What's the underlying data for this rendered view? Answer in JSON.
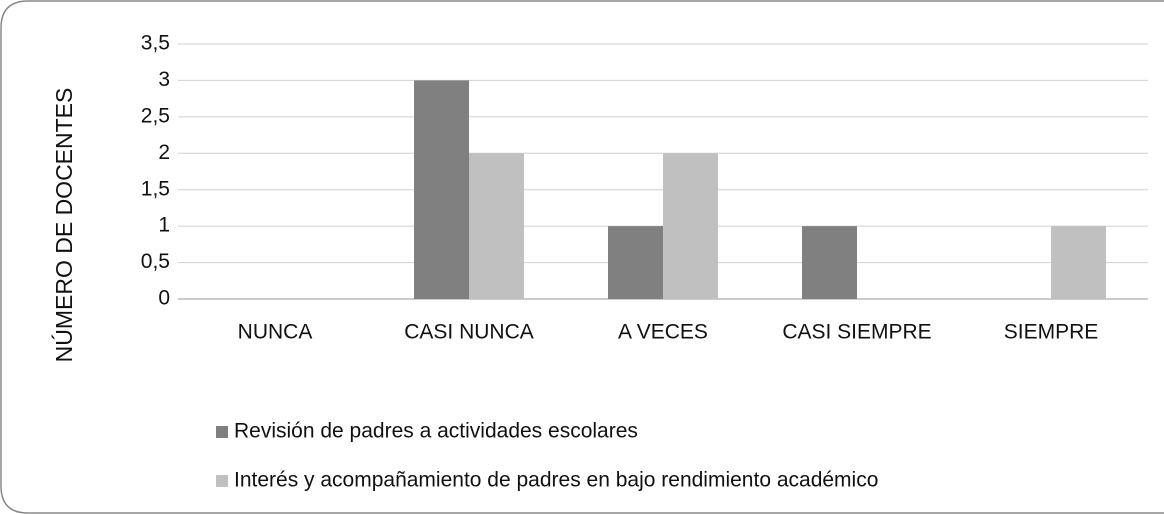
{
  "chart_data": {
    "type": "bar",
    "y_axis_label": "NÚMERO DE DOCENTES",
    "categories": [
      "NUNCA",
      "CASI NUNCA",
      "A VECES",
      "CASI SIEMPRE",
      "SIEMPRE"
    ],
    "series": [
      {
        "name": "Revisión de padres a actividades escolares",
        "color": "#808080",
        "values": [
          0,
          3,
          1,
          1,
          0
        ]
      },
      {
        "name": "Interés y acompañamiento de padres en bajo rendimiento académico",
        "color": "#c0c0c0",
        "values": [
          0,
          2,
          2,
          0,
          1
        ]
      }
    ],
    "ylim": [
      0,
      3.5
    ],
    "yticks": [
      0,
      {
        "value": 0.5,
        "label": "0,5"
      },
      1,
      {
        "value": 1.5,
        "label": "1,5"
      },
      2,
      {
        "value": 2.5,
        "label": "2,5"
      },
      3,
      {
        "value": 3.5,
        "label": "3,5"
      }
    ],
    "grid": true,
    "legend": "bottom"
  }
}
